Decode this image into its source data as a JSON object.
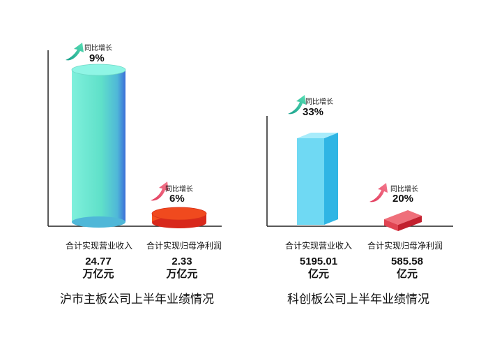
{
  "chart_data": [
    {
      "type": "bar",
      "title": "沪市主板公司上半年业绩情况",
      "categories": [
        "合计实现营业收入",
        "合计实现归母净利润"
      ],
      "values": [
        24.77,
        2.33
      ],
      "value_labels": [
        "24.77",
        "2.33"
      ],
      "units": [
        "万亿元",
        "万亿元"
      ],
      "growth_label": "同比增长",
      "growth": [
        "9%",
        "6%"
      ],
      "colors": [
        "#5fe0c9",
        "#ef3b1f"
      ]
    },
    {
      "type": "bar",
      "title": "科创板公司上半年业绩情况",
      "categories": [
        "合计实现营业收入",
        "合计实现归母净利润"
      ],
      "values": [
        5195.01,
        585.58
      ],
      "value_labels": [
        "5195.01",
        "585.58"
      ],
      "units": [
        "亿元",
        "亿元"
      ],
      "growth_label": "同比增长",
      "growth": [
        "33%",
        "20%"
      ],
      "colors": [
        "#46c8ec",
        "#e8424c"
      ]
    }
  ]
}
